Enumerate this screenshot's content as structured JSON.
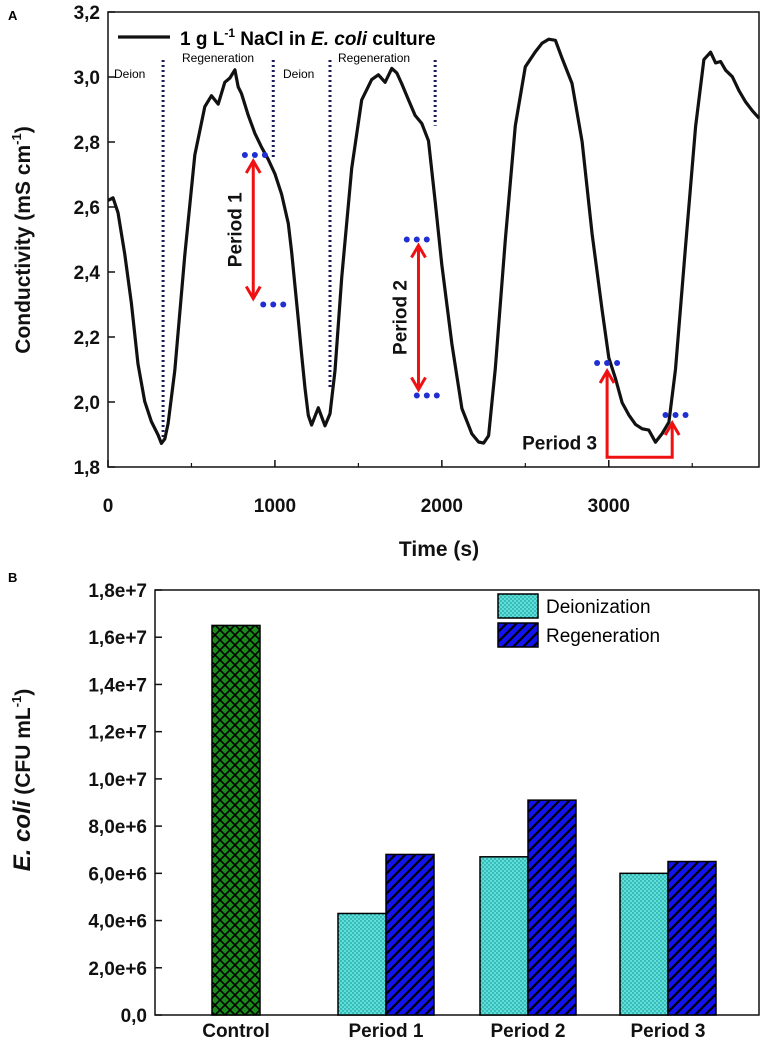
{
  "chart_data": [
    {
      "panel": "A",
      "type": "line",
      "xlabel": "Time (s)",
      "ylabel_main": "Conductivity (mS cm",
      "ylabel_sup": "-1",
      "ylabel_tail": ")",
      "xlim": [
        0,
        3900
      ],
      "ylim": [
        1.8,
        3.2
      ],
      "xticks": [
        0,
        1000,
        2000,
        3000
      ],
      "xtick_labels": [
        "0",
        "1000",
        "2000",
        "3000"
      ],
      "yticks": [
        1.8,
        2.0,
        2.2,
        2.4,
        2.6,
        2.8,
        3.0,
        3.2
      ],
      "ytick_labels": [
        "1,8",
        "2,0",
        "2,2",
        "2,4",
        "2,6",
        "2,8",
        "3,0",
        "3,2"
      ],
      "legend": {
        "pre": "1 g L",
        "sup": "-1",
        "mid": " NaCl in ",
        "italic": "E. coli",
        "post": " culture"
      },
      "series": [
        {
          "name": "1 g L-1 NaCl in E. coli culture",
          "x": [
            0,
            30,
            60,
            100,
            140,
            180,
            220,
            260,
            300,
            320,
            340,
            360,
            400,
            460,
            520,
            580,
            620,
            660,
            700,
            730,
            760,
            780,
            800,
            840,
            880,
            920,
            960,
            1000,
            1040,
            1080,
            1100,
            1120,
            1140,
            1160,
            1180,
            1200,
            1220,
            1260,
            1300,
            1330,
            1360,
            1400,
            1460,
            1520,
            1580,
            1620,
            1660,
            1700,
            1730,
            1760,
            1800,
            1840,
            1880,
            1920,
            1960,
            2000,
            2060,
            2120,
            2180,
            2220,
            2250,
            2280,
            2320,
            2380,
            2440,
            2500,
            2560,
            2600,
            2640,
            2680,
            2720,
            2780,
            2840,
            2900,
            2960,
            3000,
            3040,
            3080,
            3120,
            3160,
            3200,
            3240,
            3280,
            3320,
            3360,
            3400,
            3460,
            3520,
            3570,
            3610,
            3640,
            3670,
            3700,
            3740,
            3780,
            3820,
            3860,
            3900
          ],
          "y": [
            2.62,
            2.63,
            2.58,
            2.46,
            2.3,
            2.12,
            2.0,
            1.94,
            1.9,
            1.87,
            1.89,
            1.93,
            2.1,
            2.45,
            2.76,
            2.91,
            2.94,
            2.92,
            2.98,
            3.0,
            3.02,
            2.97,
            2.95,
            2.88,
            2.83,
            2.78,
            2.75,
            2.7,
            2.64,
            2.55,
            2.46,
            2.36,
            2.25,
            2.15,
            2.04,
            1.96,
            1.93,
            1.98,
            1.93,
            1.96,
            2.1,
            2.38,
            2.72,
            2.93,
            2.99,
            3.01,
            2.98,
            3.03,
            3.01,
            2.98,
            2.93,
            2.88,
            2.86,
            2.8,
            2.62,
            2.42,
            2.18,
            1.98,
            1.9,
            1.88,
            1.87,
            1.9,
            2.1,
            2.5,
            2.85,
            3.03,
            3.08,
            3.1,
            3.12,
            3.11,
            3.06,
            2.98,
            2.8,
            2.52,
            2.28,
            2.14,
            2.07,
            2.0,
            1.96,
            1.93,
            1.92,
            1.91,
            1.88,
            1.9,
            1.94,
            2.1,
            2.48,
            2.85,
            3.05,
            3.08,
            3.04,
            3.05,
            3.02,
            3.0,
            2.96,
            2.92,
            2.9,
            2.87
          ]
        }
      ],
      "vlines": [
        {
          "x": 330,
          "label": "Deion"
        },
        {
          "x": 990,
          "label": "Regeneration"
        },
        {
          "x": 1330,
          "label": "Deion"
        },
        {
          "x": 1960,
          "label": "Regeneration"
        }
      ],
      "period_markers": [
        {
          "label": "Period 1",
          "x1": 990,
          "y1": 2.76,
          "x2": 990,
          "y2": 2.3
        },
        {
          "label": "Period 2",
          "x1": 1960,
          "y1": 2.5,
          "x2": 1960,
          "y2": 2.02
        },
        {
          "label": "Period 3",
          "x1": 3050,
          "y1": 2.12,
          "x2": 3470,
          "y2": 1.96
        }
      ]
    },
    {
      "panel": "B",
      "type": "bar",
      "ylabel_italic": "E. coli",
      "ylabel_main": " (CFU mL",
      "ylabel_sup": "-1",
      "ylabel_tail": ")",
      "ylim": [
        0,
        18000000
      ],
      "yticks": [
        0,
        2000000,
        4000000,
        6000000,
        8000000,
        10000000,
        12000000,
        14000000,
        16000000,
        18000000
      ],
      "ytick_labels": [
        "0,0",
        "2,0e+6",
        "4,0e+6",
        "6,0e+6",
        "8,0e+6",
        "1,0e+7",
        "1,2e+7",
        "1,4e+7",
        "1,6e+7",
        "1,8e+7"
      ],
      "categories": [
        "Control",
        "Period 1",
        "Period 2",
        "Period 3"
      ],
      "control": {
        "name": "Control",
        "value": 16500000,
        "color": "#1a8a1a"
      },
      "series": [
        {
          "name": "Deionization",
          "values": [
            null,
            4300000,
            6700000,
            6000000
          ],
          "color": "#5ce0dc"
        },
        {
          "name": "Regeneration",
          "values": [
            null,
            6800000,
            9100000,
            6500000
          ],
          "color": "#1313ee"
        }
      ]
    }
  ]
}
